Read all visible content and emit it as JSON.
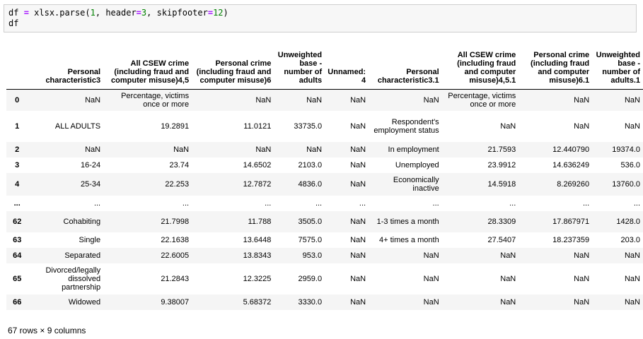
{
  "code": {
    "line1_var": "df",
    "line1_eq": "=",
    "line1_call": "xlsx.parse(",
    "line1_arg1": "1",
    "line1_sep1": ", header",
    "line1_eq2": "=",
    "line1_arg2": "3",
    "line1_sep2": ", skipfooter",
    "line1_eq3": "=",
    "line1_arg3": "12",
    "line1_close": ")",
    "line2": "df"
  },
  "table": {
    "columns": [
      "",
      "Personal characteristic3",
      "All CSEW crime (including fraud and computer misuse)4,5",
      "Personal crime (including fraud and computer misuse)6",
      "Unweighted base - number of adults",
      "Unnamed: 4",
      "Personal characteristic3.1",
      "All CSEW crime (including fraud and computer misuse)4,5.1",
      "Personal crime (including fraud and computer misuse)6.1",
      "Unweighted base - number of adults.1"
    ],
    "rows": [
      [
        "0",
        "NaN",
        "Percentage, victims once or more",
        "NaN",
        "NaN",
        "NaN",
        "NaN",
        "Percentage, victims once or more",
        "NaN",
        "NaN"
      ],
      [
        "1",
        "ALL ADULTS",
        "19.2891",
        "11.0121",
        "33735.0",
        "NaN",
        "Respondent's employment status",
        "NaN",
        "NaN",
        "NaN"
      ],
      [
        "2",
        "NaN",
        "NaN",
        "NaN",
        "NaN",
        "NaN",
        "In employment",
        "21.7593",
        "12.440790",
        "19374.0"
      ],
      [
        "3",
        "16-24",
        "23.74",
        "14.6502",
        "2103.0",
        "NaN",
        "Unemployed",
        "23.9912",
        "14.636249",
        "536.0"
      ],
      [
        "4",
        "25-34",
        "22.253",
        "12.7872",
        "4836.0",
        "NaN",
        "Economically inactive",
        "14.5918",
        "8.269260",
        "13760.0"
      ],
      [
        "...",
        "...",
        "...",
        "...",
        "...",
        "...",
        "...",
        "...",
        "...",
        "..."
      ],
      [
        "62",
        "Cohabiting",
        "21.7998",
        "11.788",
        "3505.0",
        "NaN",
        "1-3 times a month",
        "28.3309",
        "17.867971",
        "1428.0"
      ],
      [
        "63",
        "Single",
        "22.1638",
        "13.6448",
        "7575.0",
        "NaN",
        "4+ times a month",
        "27.5407",
        "18.237359",
        "203.0"
      ],
      [
        "64",
        "Separated",
        "22.6005",
        "13.8343",
        "953.0",
        "NaN",
        "NaN",
        "NaN",
        "NaN",
        "NaN"
      ],
      [
        "65",
        "Divorced/legally dissolved partnership",
        "21.2843",
        "12.3225",
        "2959.0",
        "NaN",
        "NaN",
        "NaN",
        "NaN",
        "NaN"
      ],
      [
        "66",
        "Widowed",
        "9.38007",
        "5.68372",
        "3330.0",
        "NaN",
        "NaN",
        "NaN",
        "NaN",
        "NaN"
      ]
    ]
  },
  "footer": "67 rows × 9 columns"
}
